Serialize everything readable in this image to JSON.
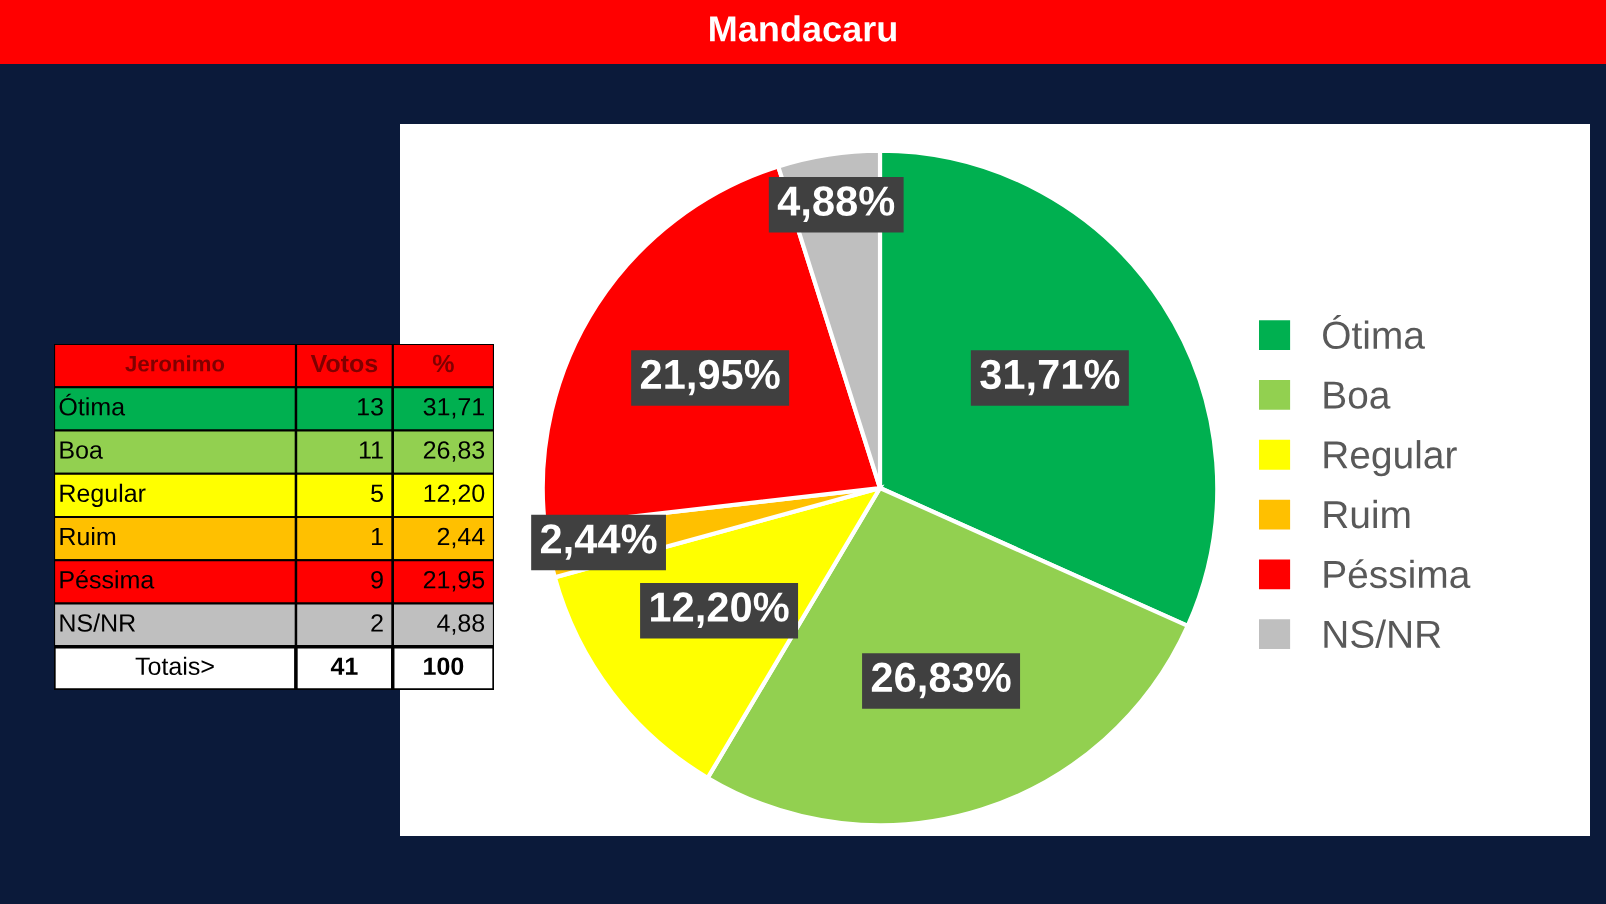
{
  "chart_data": [
    {
      "type": "other",
      "title": "Jeronimo",
      "data_labels": true,
      "categories": [
        "Ótima",
        "Boa",
        "Regular",
        "Ruim",
        "Péssima",
        "NS/NR"
      ],
      "series": [
        {
          "name": "Votos",
          "values": [
            13,
            11,
            5,
            1,
            9,
            2
          ],
          "colors": [
            "#00b050",
            "#92d050",
            "#ffff00",
            "#ffc000",
            "#ff0000",
            "#bfbfbf"
          ]
        }
      ],
      "annotations": [
        "%",
        "31,71",
        "26,83",
        "12,20",
        "2,44",
        "21,95",
        "4,88",
        "Totais>",
        "41",
        "100"
      ]
    },
    {
      "type": "pie",
      "title": "Mandacaru",
      "categories": [
        "Ótima",
        "Boa",
        "Regular",
        "Ruim",
        "Péssima",
        "NS/NR"
      ],
      "values": [
        31.71,
        26.83,
        12.2,
        2.44,
        21.95,
        4.88
      ],
      "value_labels": [
        "31,71%",
        "26,83%",
        "12,20%",
        "2,44%",
        "21,95%",
        "4,88%"
      ],
      "colors": [
        "#00b050",
        "#92d050",
        "#ffff00",
        "#ffc000",
        "#ff0000",
        "#bfbfbf"
      ],
      "legend": "right"
    }
  ]
}
